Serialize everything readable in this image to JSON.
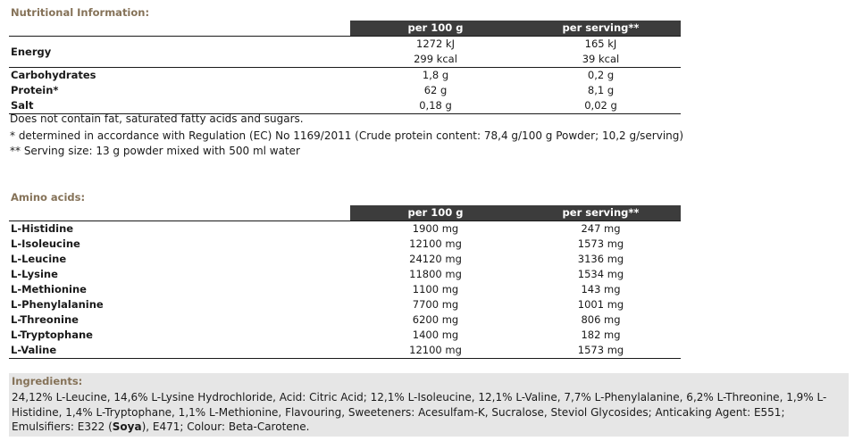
{
  "nutrition": {
    "title": "Nutritional Information:",
    "col_per100": "per 100 g",
    "col_serving": "per serving**",
    "energy_label": "Energy",
    "energy_kj_100": "1272 kJ",
    "energy_kcal_100": "299 kcal",
    "energy_kj_serv": "165 kJ",
    "energy_kcal_serv": "39 kcal",
    "rows": [
      {
        "label": "Carbohydrates",
        "per100": "1,8 g",
        "serving": "0,2 g"
      },
      {
        "label": "Protein*",
        "per100": "62 g",
        "serving": "8,1 g"
      },
      {
        "label": "Salt",
        "per100": "0,18 g",
        "serving": "0,02 g"
      }
    ],
    "notes": [
      "Does not contain fat, saturated fatty acids and sugars.",
      "* determined in accordance with Regulation (EC) No 1169/2011 (Crude protein content: 78,4 g/100 g Powder; 10,2 g/serving)",
      "** Serving size: 13 g powder mixed with 500 ml water"
    ]
  },
  "amino": {
    "title": "Amino acids:",
    "col_per100": "per 100 g",
    "col_serving": "per serving**",
    "rows": [
      {
        "label": "L-Histidine",
        "per100": "1900 mg",
        "serving": "247 mg"
      },
      {
        "label": "L-Isoleucine",
        "per100": "12100 mg",
        "serving": "1573 mg"
      },
      {
        "label": "L-Leucine",
        "per100": "24120 mg",
        "serving": "3136 mg"
      },
      {
        "label": "L-Lysine",
        "per100": "11800 mg",
        "serving": "1534 mg"
      },
      {
        "label": "L-Methionine",
        "per100": "1100 mg",
        "serving": "143 mg"
      },
      {
        "label": "L-Phenylalanine",
        "per100": "7700 mg",
        "serving": "1001 mg"
      },
      {
        "label": "L-Threonine",
        "per100": "6200 mg",
        "serving": "806 mg"
      },
      {
        "label": "L-Tryptophane",
        "per100": "1400 mg",
        "serving": "182 mg"
      },
      {
        "label": "L-Valine",
        "per100": "12100 mg",
        "serving": "1573 mg"
      }
    ]
  },
  "ingredients": {
    "title": "Ingredients:",
    "text_before": "24,12% L-Leucine, 14,6% L-Lysine Hydrochloride, Acid: Citric Acid; 12,1% L-Isoleucine, 12,1% L-Valine, 7,7% L-Phenylalanine, 6,2% L-Threonine, 1,9% L-Histidine, 1,4% L-Tryptophane, 1,1% L-Methionine, Flavouring, Sweeteners: Acesulfam-K, Sucralose, Steviol Glycosides; Anticaking Agent: E551; Emulsifiers: E322 (",
    "allergen": "Soya",
    "text_after": "), E471; Colour: Beta-Carotene."
  }
}
